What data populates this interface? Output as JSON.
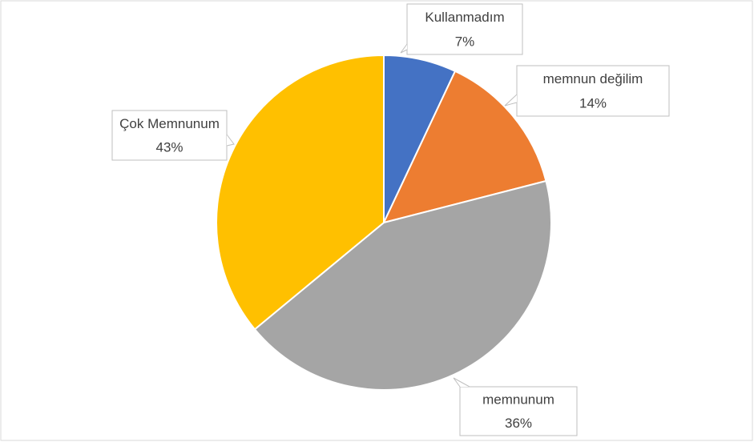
{
  "chart_data": {
    "type": "pie",
    "categories": [
      "Kullanmadım",
      "memnun değilim",
      "Çok Memnunum",
      "memnunum"
    ],
    "values": [
      7,
      14,
      43,
      36
    ],
    "value_labels": [
      "7%",
      "14%",
      "43%",
      "36%"
    ],
    "colors": [
      "#4472c4",
      "#ed7d31",
      "#a5a5a5",
      "#ffc000"
    ]
  }
}
